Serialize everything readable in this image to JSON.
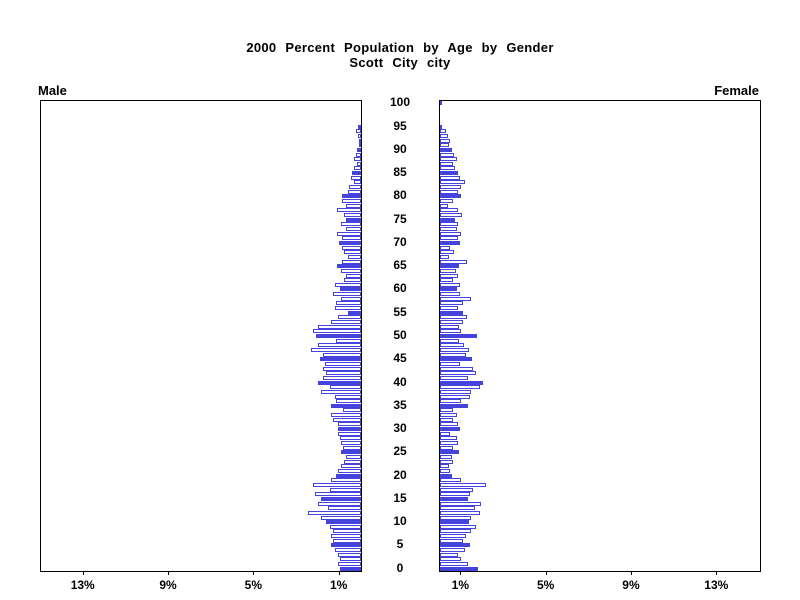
{
  "title": {
    "line1": "2000 Percent Population by Age by Gender",
    "line2": "Scott City city"
  },
  "panels": {
    "male_label": "Male",
    "female_label": "Female"
  },
  "axis": {
    "age_labels": [
      0,
      5,
      10,
      15,
      20,
      25,
      30,
      35,
      40,
      45,
      50,
      55,
      60,
      65,
      70,
      75,
      80,
      85,
      90,
      95,
      100
    ],
    "pct_tick_values": [
      1,
      5,
      9,
      13
    ],
    "pct_tick_labels": [
      "1%",
      "5%",
      "9%",
      "13%"
    ],
    "xlim_pct": [
      0,
      15
    ]
  },
  "colors": {
    "bar_blue": "#4444dd",
    "highlight_every_n_years": 5
  },
  "chart_data": {
    "type": "bar",
    "variant": "population-pyramid",
    "title": "2000 Percent Population by Age by Gender",
    "subtitle": "Scott City city",
    "unit": "percent of total population",
    "xlabel_ticks_pct": [
      1,
      5,
      9,
      13
    ],
    "xlim": [
      0,
      15
    ],
    "age_min": 0,
    "age_max": 100,
    "highlighted_ages": "multiples of 5 drawn as solid blue bars, others white with blue outline",
    "series": [
      {
        "name": "Male",
        "side": "left",
        "values_by_age_0_to_100": [
          1.0,
          1.09,
          1.0,
          1.09,
          1.24,
          1.4,
          1.32,
          1.4,
          1.32,
          1.47,
          1.63,
          1.86,
          2.48,
          1.55,
          2.0,
          1.86,
          2.17,
          1.47,
          2.25,
          1.4,
          1.16,
          1.09,
          0.93,
          0.78,
          0.7,
          0.93,
          0.85,
          0.93,
          1.0,
          1.09,
          1.09,
          1.09,
          1.3,
          1.4,
          0.85,
          1.4,
          1.16,
          1.24,
          1.86,
          1.47,
          2.0,
          1.78,
          1.63,
          1.78,
          1.7,
          1.94,
          1.78,
          2.33,
          2.0,
          1.16,
          2.09,
          2.25,
          2.0,
          1.4,
          1.09,
          0.62,
          1.24,
          1.16,
          0.93,
          1.3,
          1.0,
          1.24,
          0.8,
          0.7,
          0.93,
          1.12,
          0.9,
          0.62,
          0.78,
          0.9,
          1.05,
          0.9,
          1.12,
          0.7,
          0.96,
          0.7,
          0.78,
          1.12,
          0.7,
          0.9,
          0.9,
          0.62,
          0.54,
          0.31,
          0.46,
          0.43,
          0.31,
          0.19,
          0.34,
          0.23,
          0.19,
          0.1,
          0.05,
          0.12,
          0.22,
          0.15,
          0,
          0,
          0,
          0,
          0
        ]
      },
      {
        "name": "Female",
        "side": "right",
        "values_by_age_0_to_100": [
          1.78,
          1.32,
          1.0,
          0.85,
          1.16,
          1.4,
          1.09,
          1.24,
          1.47,
          1.7,
          1.36,
          1.47,
          1.86,
          1.63,
          1.94,
          1.32,
          1.4,
          1.55,
          2.17,
          1.0,
          0.56,
          0.48,
          0.43,
          0.62,
          0.56,
          0.9,
          0.62,
          0.85,
          0.78,
          0.46,
          0.93,
          0.85,
          0.62,
          0.78,
          0.6,
          1.32,
          1.0,
          1.4,
          1.47,
          1.86,
          2.0,
          1.32,
          1.7,
          1.55,
          0.96,
          1.52,
          1.24,
          1.36,
          1.12,
          0.9,
          1.74,
          1.0,
          0.9,
          1.09,
          1.27,
          1.09,
          0.85,
          1.09,
          1.47,
          0.96,
          0.78,
          0.93,
          0.62,
          0.85,
          0.74,
          0.9,
          1.27,
          0.43,
          0.65,
          0.46,
          0.96,
          0.85,
          1.0,
          0.81,
          0.85,
          0.7,
          1.05,
          0.85,
          0.39,
          0.62,
          1.0,
          0.85,
          1.0,
          1.16,
          0.96,
          0.85,
          0.7,
          0.59,
          0.78,
          0.65,
          0.54,
          0.43,
          0.46,
          0.39,
          0.28,
          0.08,
          0,
          0,
          0,
          0,
          0.09
        ]
      }
    ]
  }
}
